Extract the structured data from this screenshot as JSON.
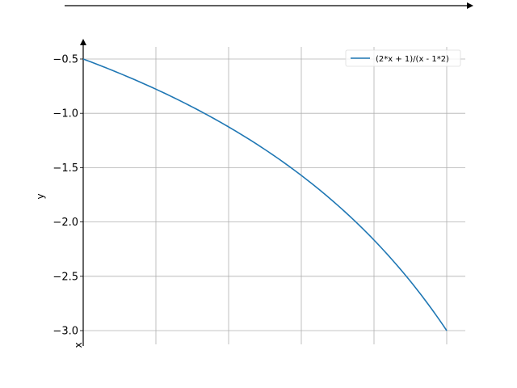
{
  "chart_data": {
    "type": "line",
    "title": "",
    "xlabel": "x",
    "ylabel": "y",
    "xlim": [
      0,
      1
    ],
    "ylim": [
      -3.1,
      -0.4
    ],
    "grid": true,
    "legend_position": "top-right",
    "y_ticks": [
      -0.5,
      -1.0,
      -1.5,
      -2.0,
      -2.5,
      -3.0
    ],
    "y_tick_labels": [
      "−0.5",
      "−1.0",
      "−1.5",
      "−2.0",
      "−2.5",
      "−3.0"
    ],
    "x_grid_values": [
      0,
      0.2,
      0.4,
      0.6,
      0.8,
      1.0
    ],
    "series": [
      {
        "name": "(2*x + 1)/(x - 1*2)",
        "color": "#1f77b4",
        "x": [
          0,
          0.1,
          0.2,
          0.3,
          0.4,
          0.5,
          0.6,
          0.7,
          0.8,
          0.9,
          1.0
        ],
        "y": [
          -0.5,
          -0.632,
          -0.778,
          -0.941,
          -1.125,
          -1.333,
          -1.571,
          -1.846,
          -2.167,
          -2.545,
          -3.0
        ]
      }
    ]
  }
}
